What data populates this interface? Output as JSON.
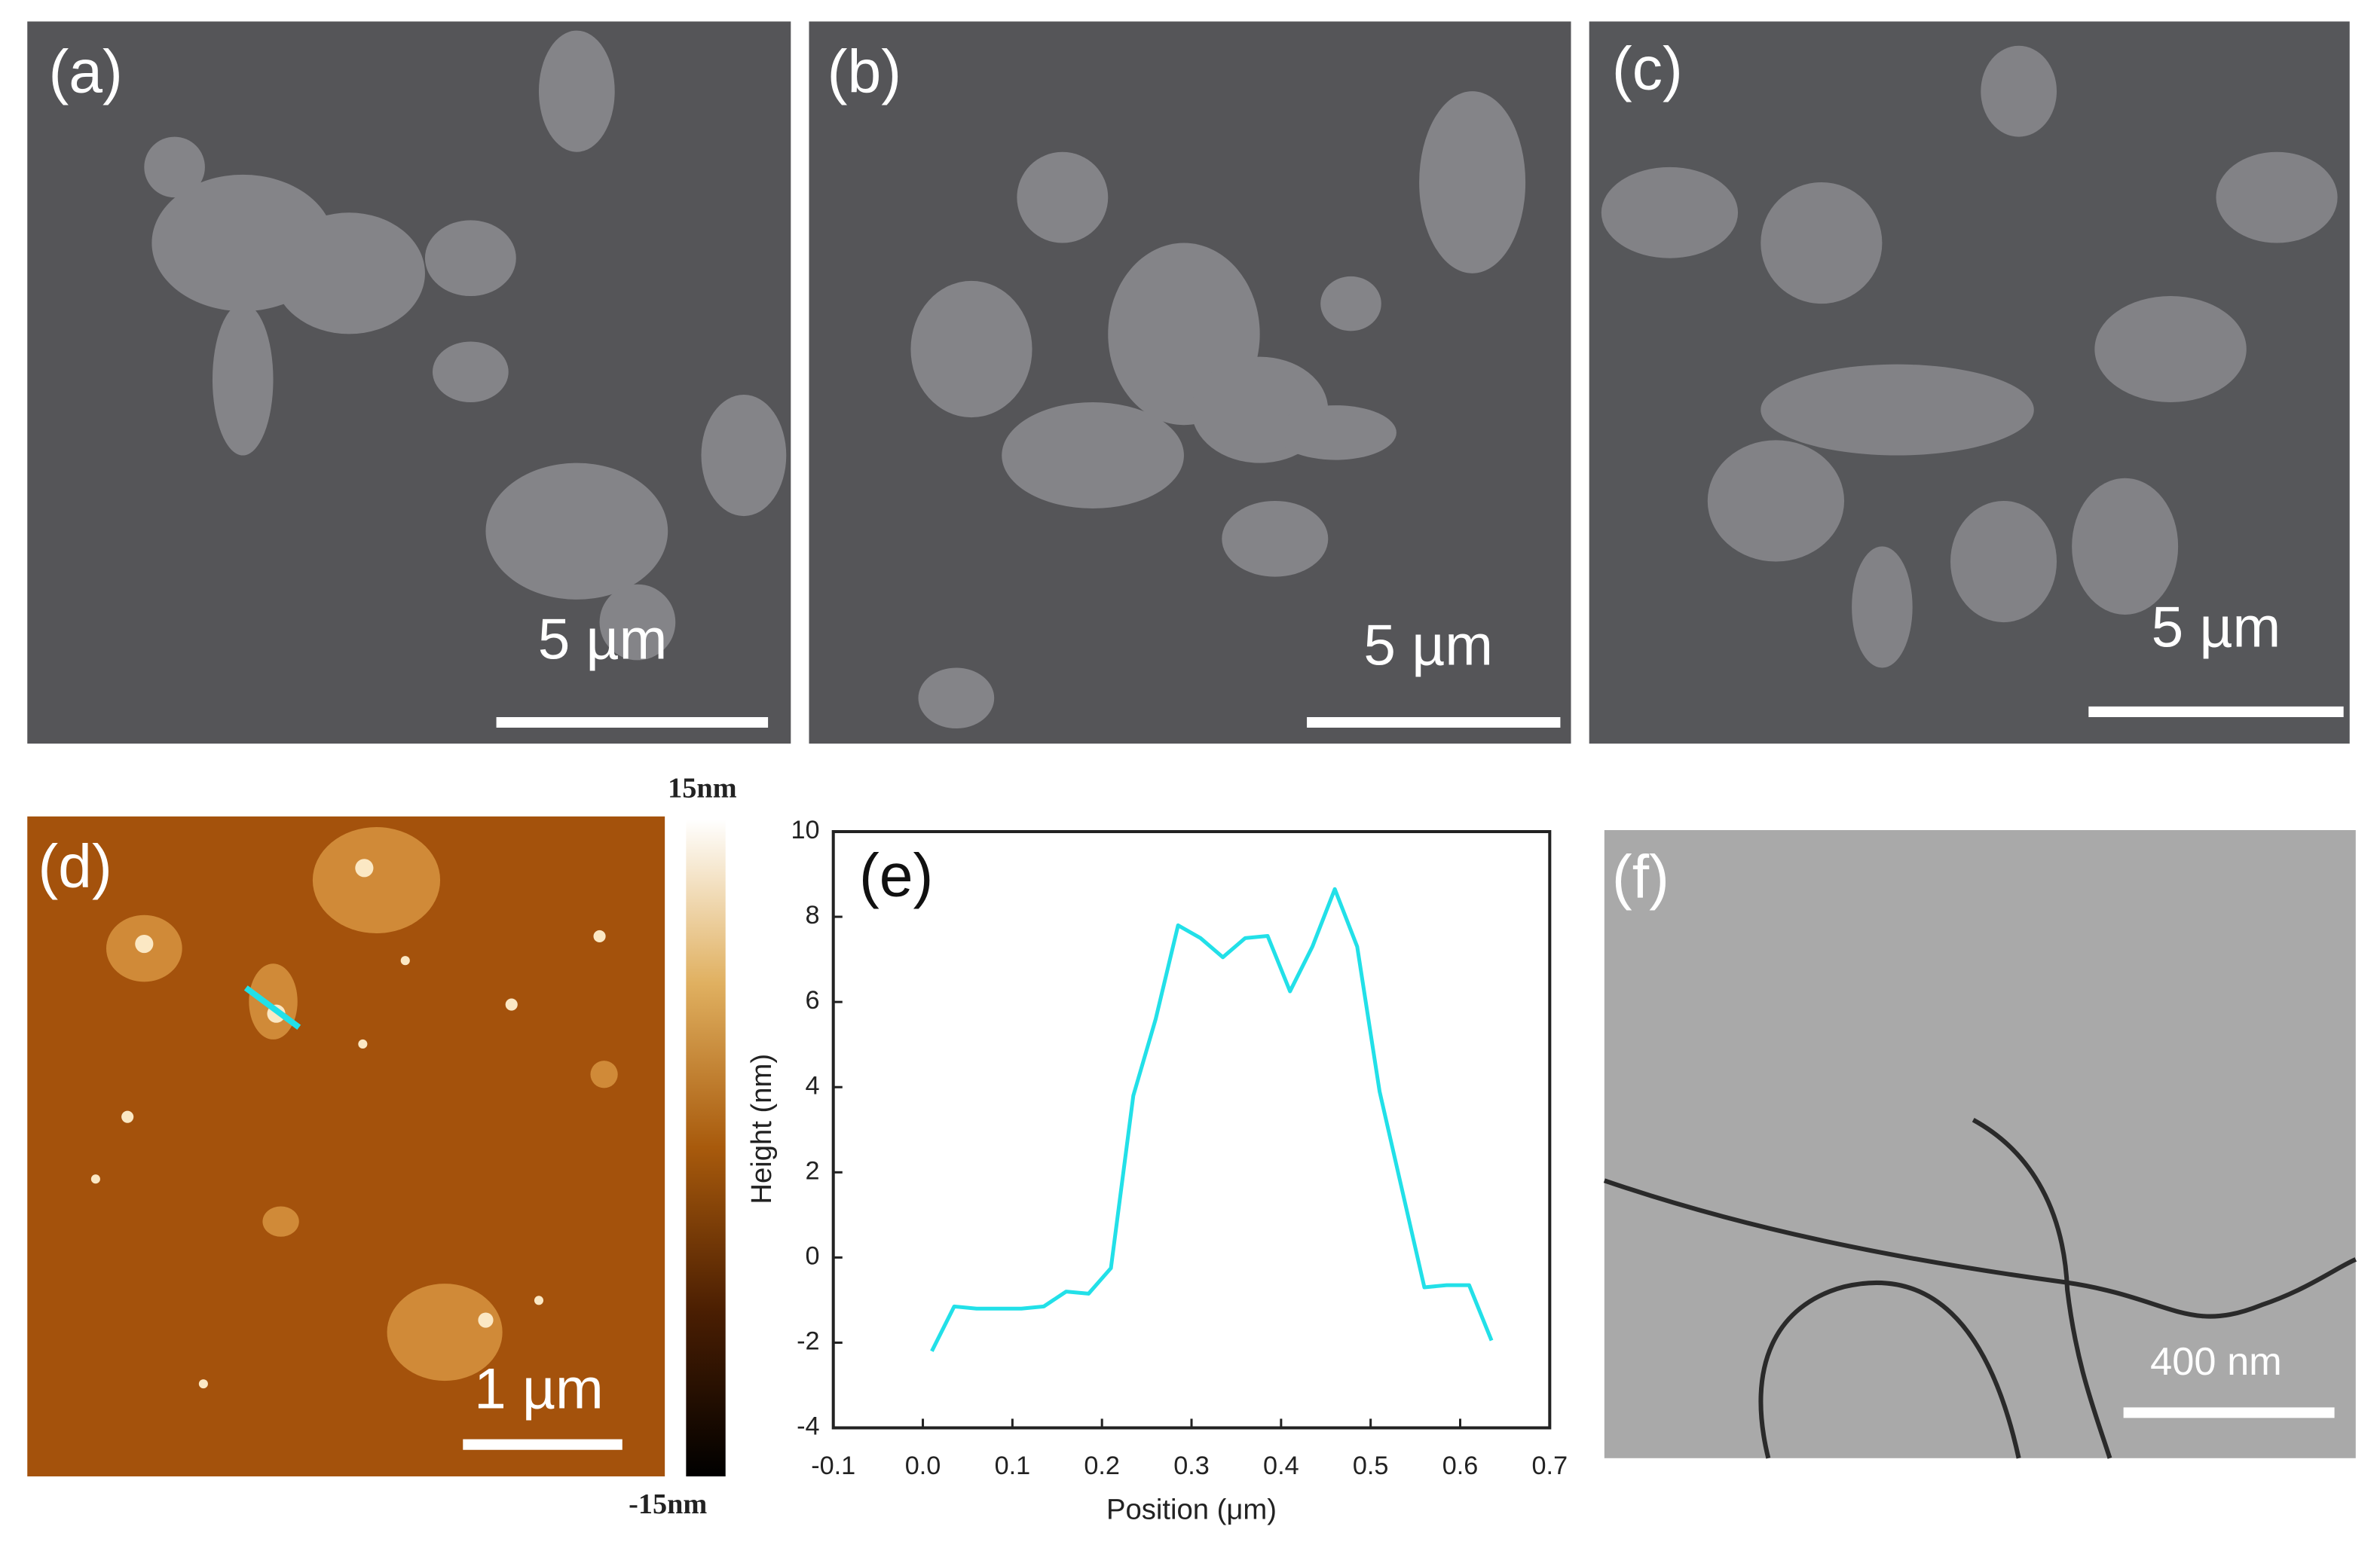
{
  "panels": {
    "a": {
      "label": "(a)",
      "scale_bar": "5 µm"
    },
    "b": {
      "label": "(b)",
      "scale_bar": "5 µm"
    },
    "c": {
      "label": "(c)",
      "scale_bar": "5 µm"
    },
    "d": {
      "label": "(d)",
      "scale_bar": "1 µm",
      "colorbar_max": "15nm",
      "colorbar_min": "-15nm"
    },
    "f": {
      "label": "(f)",
      "scale_bar": "400 nm"
    }
  },
  "chart_data": {
    "type": "line",
    "panel_label": "(e)",
    "x_label": "Position (μm)",
    "y_label": "Height (nm)",
    "x": [
      0.01,
      0.035,
      0.06,
      0.085,
      0.11,
      0.135,
      0.16,
      0.185,
      0.21,
      0.235,
      0.26,
      0.285,
      0.31,
      0.335,
      0.36,
      0.385,
      0.41,
      0.435,
      0.46,
      0.485,
      0.51,
      0.535,
      0.56,
      0.585,
      0.61,
      0.635
    ],
    "values": [
      -2.2,
      -1.15,
      -1.2,
      -1.2,
      -1.2,
      -1.15,
      -0.8,
      -0.85,
      -0.25,
      3.8,
      5.6,
      7.8,
      7.5,
      7.05,
      7.5,
      7.55,
      6.25,
      7.3,
      8.65,
      7.3,
      3.9,
      1.6,
      -0.7,
      -0.65,
      -0.65,
      -1.95
    ],
    "color": "#22e0e8",
    "xlim": [
      -0.1,
      0.7
    ],
    "xticks": [
      -0.1,
      {
        "value": 0,
        "label": "0.0"
      },
      0.1,
      0.2,
      0.3,
      0.4,
      0.5,
      0.6,
      0.7
    ],
    "ylim": [
      -4,
      10
    ],
    "yticks": [
      -4,
      -2,
      0,
      2,
      4,
      6,
      8,
      10
    ]
  }
}
